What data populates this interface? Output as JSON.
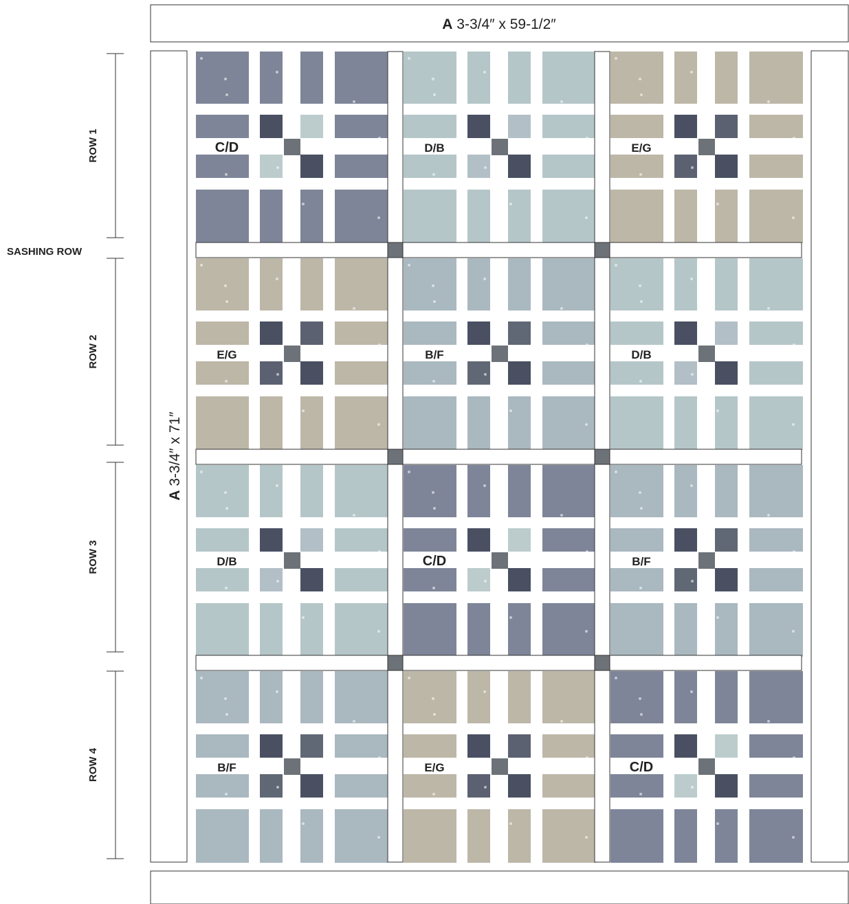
{
  "borders": {
    "top": {
      "bold": "A",
      "text": " 3-3/4″ x 59-1/2″"
    },
    "left": {
      "bold": "A",
      "text": " 3-3/4″ x 71″"
    }
  },
  "row_labels": [
    "ROW 1",
    "ROW 2",
    "ROW 3",
    "ROW 4"
  ],
  "sashing_label": "SASHING ROW",
  "blocks": [
    [
      {
        "label": "C/D",
        "big": "C",
        "small": "D"
      },
      {
        "label": "D/B",
        "big": "D",
        "small": "B"
      },
      {
        "label": "E/G",
        "big": "E",
        "small": "G"
      }
    ],
    [
      {
        "label": "E/G",
        "big": "E",
        "small": "G"
      },
      {
        "label": "B/F",
        "big": "B",
        "small": "F"
      },
      {
        "label": "D/B",
        "big": "D",
        "small": "B"
      }
    ],
    [
      {
        "label": "D/B",
        "big": "D",
        "small": "B"
      },
      {
        "label": "C/D",
        "big": "C",
        "small": "D"
      },
      {
        "label": "B/F",
        "big": "B",
        "small": "F"
      }
    ],
    [
      {
        "label": "B/F",
        "big": "B",
        "small": "F"
      },
      {
        "label": "E/G",
        "big": "E",
        "small": "G"
      },
      {
        "label": "C/D",
        "big": "C",
        "small": "D"
      }
    ]
  ],
  "fabrics": {
    "B": "#aab8c0",
    "C": "#7e8598",
    "D": "#b5c6c8",
    "E": "#bdb7a8",
    "F": "#4f5866",
    "G": "#4a5062"
  },
  "colors": {
    "outline": "#333333",
    "cornerstone": "#6c7278"
  }
}
